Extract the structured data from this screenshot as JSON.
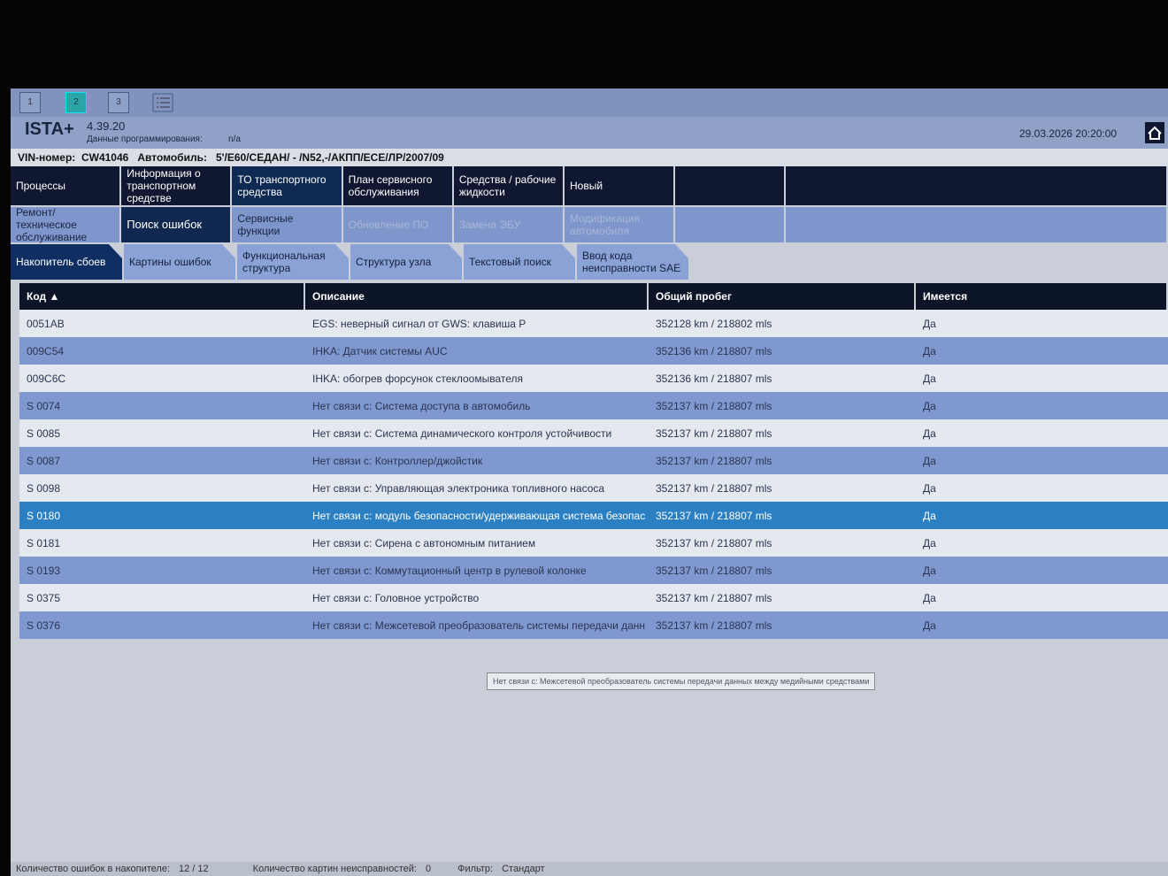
{
  "toolbar": {
    "buttons": [
      "1",
      "2",
      "3"
    ]
  },
  "header": {
    "app_name": "ISTA+",
    "version": "4.39.20",
    "programming_data_label": "Данные программирования:",
    "programming_data_value": "n/a",
    "datetime": "29.03.2026 20:20:00",
    "vin_label": "VIN-номер:",
    "vin": "CW41046",
    "vehicle_label": "Автомобиль:",
    "vehicle": "5'/E60/СЕДАН/ - /N52,-/АКПП/ECE/ЛР/2007/09"
  },
  "nav": {
    "main": [
      "Процессы",
      "Информация о транспортном средстве",
      "ТО транспортного средства",
      "План сервисного обслуживания",
      "Средства / рабочие жидкости",
      "Новый"
    ],
    "sub": [
      "Ремонт/ техническое обслуживание",
      "Поиск ошибок",
      "Сервисные функции",
      "Обновление ПО",
      "Замена ЭБУ",
      "Модификация автомобиля"
    ],
    "tabs": [
      "Накопитель сбоев",
      "Картины ошибок",
      "Функциональная структура",
      "Структура узла",
      "Текстовый поиск",
      "Ввод кода неисправности SAE"
    ]
  },
  "table": {
    "columns": [
      "Код ▲",
      "Описание",
      "Общий пробег",
      "Имеется"
    ],
    "selected_row": 7,
    "rows": [
      [
        "0051AB",
        "EGS: неверный сигнал от GWS: клавиша P",
        "352128 km / 218802 mls",
        "Да"
      ],
      [
        "009C54",
        "IHKA: Датчик системы AUC",
        "352136 km / 218807 mls",
        "Да"
      ],
      [
        "009C6C",
        "IHKA: обогрев форсунок стеклоомывателя",
        "352136 km / 218807 mls",
        "Да"
      ],
      [
        "S 0074",
        "Нет связи с: Система доступа в автомобиль",
        "352137 km / 218807 mls",
        "Да"
      ],
      [
        "S 0085",
        "Нет связи с: Система динамического контроля устойчивости",
        "352137 km / 218807 mls",
        "Да"
      ],
      [
        "S 0087",
        "Нет связи с: Контроллер/джойстик",
        "352137 km / 218807 mls",
        "Да"
      ],
      [
        "S 0098",
        "Нет связи с: Управляющая электроника топливного насоса",
        "352137 km / 218807 mls",
        "Да"
      ],
      [
        "S 0180",
        "Нет связи с: модуль безопасности/удерживающая система безопас",
        "352137 km / 218807 mls",
        "Да"
      ],
      [
        "S 0181",
        "Нет связи с: Сирена с автономным питанием",
        "352137 km / 218807 mls",
        "Да"
      ],
      [
        "S 0193",
        "Нет связи с: Коммутационный центр в рулевой колонке",
        "352137 km / 218807 mls",
        "Да"
      ],
      [
        "S 0375",
        "Нет связи с: Головное устройство",
        "352137 km / 218807 mls",
        "Да"
      ],
      [
        "S 0376",
        "Нет связи с: Межсетевой преобразователь системы передачи данн",
        "352137 km / 218807 mls",
        "Да"
      ]
    ]
  },
  "tooltip": "Нет связи с: Межсетевой преобразователь системы передачи данных между медийными средствами",
  "status": {
    "faults_label": "Количество ошибок в накопителе:",
    "faults_value": "12 / 12",
    "patterns_label": "Количество картин неисправностей:",
    "patterns_value": "0",
    "filter_label": "Фильтр:",
    "filter_value": "Стандарт"
  }
}
